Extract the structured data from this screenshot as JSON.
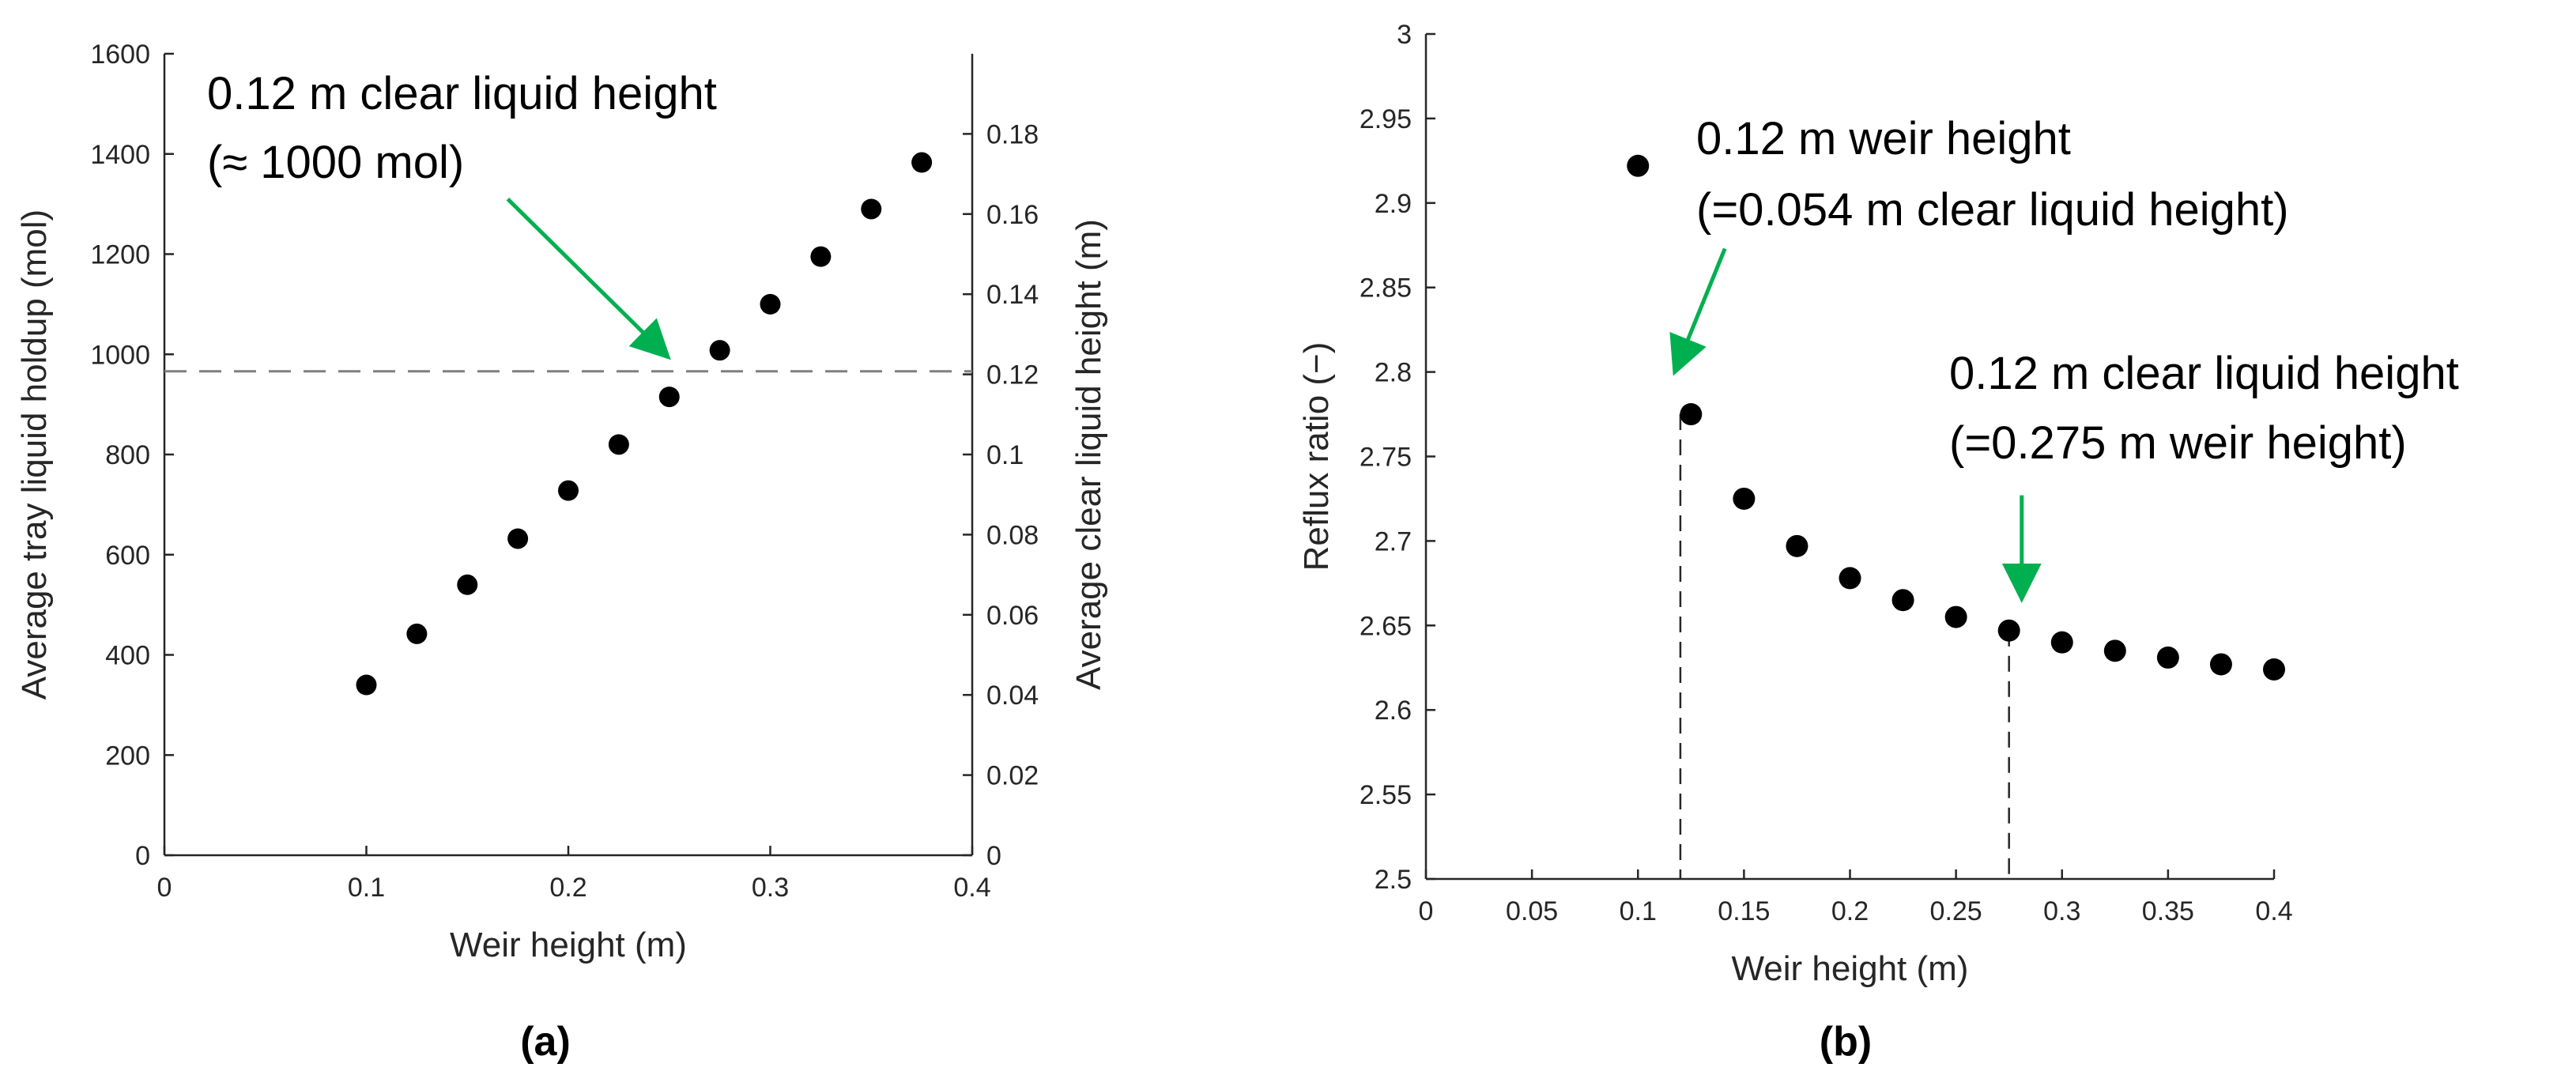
{
  "colors": {
    "axis": "#262626",
    "marker": "#000000",
    "annotation_arrow": "#00B050",
    "reference_line": "#7F7F7F",
    "text": "#000000"
  },
  "chart_data": [
    {
      "panel_label": "(a)",
      "type": "scatter",
      "xlabel": "Weir height (m)",
      "ylabel": "Average tray liquid holdup (mol)",
      "y2label": "Average clear liquid height (m)",
      "xlim": [
        0,
        0.4
      ],
      "ylim": [
        0,
        1600
      ],
      "y2lim": [
        0,
        0.2
      ],
      "xticks": [
        "0",
        "0.1",
        "0.2",
        "0.3",
        "0.4"
      ],
      "yticks": [
        "0",
        "200",
        "400",
        "600",
        "800",
        "1000",
        "1200",
        "1400",
        "1600"
      ],
      "y2ticks": [
        "0",
        "0.02",
        "0.04",
        "0.06",
        "0.08",
        "0.1",
        "0.12",
        "0.14",
        "0.16",
        "0.18"
      ],
      "x": [
        0.1,
        0.125,
        0.15,
        0.175,
        0.2,
        0.225,
        0.25,
        0.275,
        0.3,
        0.325,
        0.35,
        0.375
      ],
      "y": [
        340,
        442,
        540,
        632,
        728,
        820,
        915,
        1008,
        1100,
        1195,
        1290,
        1383
      ],
      "reference_line": {
        "y": 966,
        "style": "dashed"
      },
      "annotation": {
        "lines": [
          "0.12 m clear liquid height",
          "(≈ 1000 mol)"
        ],
        "arrow_from": [
          0.17,
          1310
        ],
        "arrow_to": [
          0.248,
          1000
        ]
      }
    },
    {
      "panel_label": "(b)",
      "type": "scatter",
      "xlabel": "Weir height (m)",
      "ylabel": "Reflux ratio (−)",
      "xlim": [
        0,
        0.4
      ],
      "ylim": [
        2.5,
        3
      ],
      "xticks": [
        "0",
        "0.05",
        "0.1",
        "0.15",
        "0.2",
        "0.25",
        "0.3",
        "0.35",
        "0.4"
      ],
      "yticks": [
        "2.5",
        "2.55",
        "2.6",
        "2.65",
        "2.7",
        "2.75",
        "2.8",
        "2.85",
        "2.9",
        "2.95",
        "3"
      ],
      "x": [
        0.1,
        0.125,
        0.15,
        0.175,
        0.2,
        0.225,
        0.25,
        0.275,
        0.3,
        0.325,
        0.35,
        0.375,
        0.4
      ],
      "y": [
        2.922,
        2.775,
        2.725,
        2.697,
        2.678,
        2.665,
        2.655,
        2.647,
        2.64,
        2.635,
        2.631,
        2.627,
        2.624
      ],
      "vertical_lines": [
        0.12,
        0.275
      ],
      "annotations": [
        {
          "lines": [
            "0.12 m weir height",
            "(=0.054 m clear liquid height)"
          ],
          "arrow_from": [
            0.141,
            2.873
          ],
          "arrow_to": [
            0.118,
            2.802
          ]
        },
        {
          "lines": [
            "0.12 m clear liquid height",
            "(=0.275 m weir height)"
          ],
          "arrow_from": [
            0.281,
            2.727
          ],
          "arrow_to": [
            0.281,
            2.668
          ]
        }
      ]
    }
  ]
}
